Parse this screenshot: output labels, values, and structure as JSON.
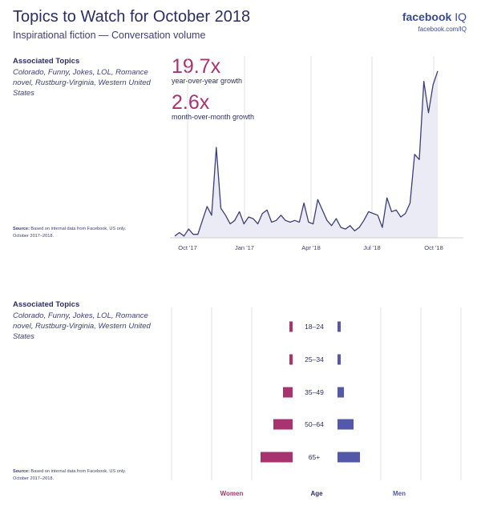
{
  "header": {
    "title": "Topics to Watch for October 2018",
    "subtitle": "Inspirational fiction — Conversation volume",
    "brand": "facebook",
    "brand_suffix": "IQ",
    "brand_url": "facebook.com/IQ"
  },
  "top_section": {
    "assoc_title": "Associated Topics",
    "assoc_topics": "Colorado, Funny, Jokes, LOL, Romance novel, Rustburg-Virginia, Western United States",
    "source_label": "Source:",
    "source_text": "Based on internal data from Facebook, US only. October 2017–2018.",
    "yoy_value": "19.7x",
    "yoy_label": "year-over-year growth",
    "mom_value": "2.6x",
    "mom_label": "month-over-month growth"
  },
  "bottom_section": {
    "assoc_title": "Associated Topics",
    "assoc_topics": "Colorado, Funny, Jokes, LOL, Romance novel, Rustburg-Virginia, Western United States",
    "source_label": "Source:",
    "source_text": "Based on internal data from Facebook, US only. October 2017–2018."
  },
  "colors": {
    "line": "#3b3f73",
    "area": "#ebebf5",
    "women": "#a8346f",
    "men": "#5358a8",
    "grid": "#dcdcdc"
  },
  "chart_data": [
    {
      "type": "area",
      "title": "",
      "xlabel": "",
      "ylabel": "",
      "x_ticks": [
        "Oct '17",
        "Jan '17",
        "Apr '18",
        "Jul '18",
        "Oct '18"
      ],
      "ylim": [
        0,
        100
      ],
      "grid": "vertical",
      "series": [
        {
          "values": [
            1,
            3,
            1,
            5,
            2,
            2,
            10,
            18,
            13,
            52,
            17,
            13,
            8,
            10,
            15,
            8,
            12,
            11,
            8,
            14,
            16,
            9,
            10,
            13,
            10,
            9,
            10,
            9,
            20,
            9,
            8,
            22,
            16,
            10,
            7,
            11,
            6,
            5,
            7,
            4,
            6,
            10,
            15,
            14,
            13,
            6,
            23,
            15,
            16,
            12,
            14,
            20,
            48,
            45,
            90,
            72,
            88,
            96
          ]
        }
      ]
    },
    {
      "type": "bar",
      "title": "",
      "categories": [
        "18–24",
        "25–34",
        "35–49",
        "50–64",
        "65+"
      ],
      "axis_label": "Age",
      "series": [
        {
          "name": "Women",
          "values": [
            1,
            1,
            3,
            6,
            10
          ]
        },
        {
          "name": "Men",
          "values": [
            1,
            1,
            2,
            5,
            7
          ]
        }
      ],
      "xlim": [
        0,
        25
      ]
    }
  ]
}
